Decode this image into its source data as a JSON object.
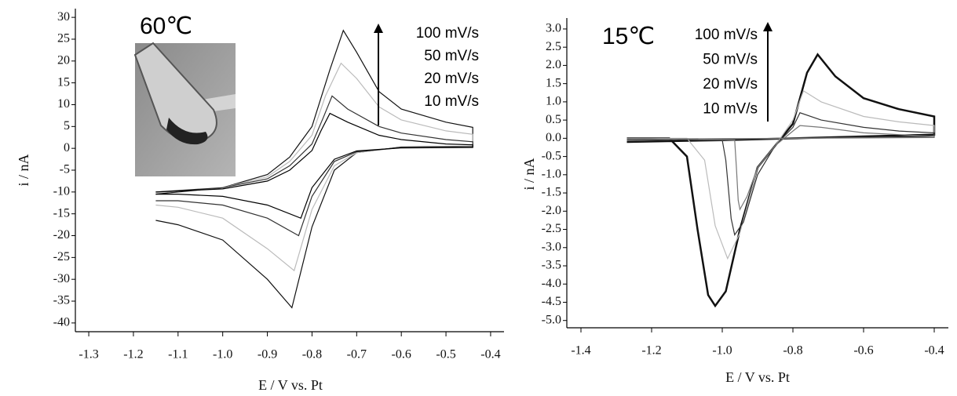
{
  "chart_data": [
    {
      "type": "line",
      "annotation": "60℃",
      "x_label": "E / V vs. Pt",
      "y_label": "i / nA",
      "xlim": [
        -1.33,
        -0.37
      ],
      "ylim": [
        -42,
        32
      ],
      "xticks": [
        -1.3,
        -1.2,
        -1.1,
        {
          "value": -1,
          "label": "-1.0"
        },
        -0.9,
        -0.8,
        -0.7,
        -0.6,
        -0.5,
        -0.4
      ],
      "yticks": [
        30,
        25,
        20,
        15,
        10,
        5,
        0,
        -5,
        -10,
        -15,
        -20,
        -25,
        -30,
        -35,
        -40
      ],
      "legend": "upper right",
      "series": [
        {
          "name": "100 mV/s",
          "color": "#111111",
          "x": [
            -1.15,
            -1.0,
            -0.9,
            -0.85,
            -0.8,
            -0.76,
            -0.73,
            -0.7,
            -0.65,
            -0.6,
            -0.5,
            -0.44,
            -0.44,
            -0.6,
            -0.7,
            -0.75,
            -0.8,
            -0.845,
            -0.9,
            -1.0,
            -1.1,
            -1.15
          ],
          "values": [
            -10.5,
            -9,
            -6,
            -2,
            5,
            18,
            27,
            22,
            13,
            9,
            6,
            4.8,
            0.5,
            0.3,
            -1,
            -5,
            -18,
            -36.5,
            -30,
            -21,
            -17.5,
            -16.5
          ]
        },
        {
          "name": "50 mV/s",
          "color": "#bbbbbb",
          "x": [
            -1.15,
            -1.0,
            -0.9,
            -0.85,
            -0.8,
            -0.77,
            -0.735,
            -0.7,
            -0.65,
            -0.6,
            -0.5,
            -0.44,
            -0.44,
            -0.6,
            -0.7,
            -0.75,
            -0.8,
            -0.84,
            -0.9,
            -1.0,
            -1.1,
            -1.15
          ],
          "values": [
            -10.2,
            -9,
            -6.5,
            -3,
            3,
            12,
            19.5,
            16,
            9.5,
            6.5,
            4,
            3.2,
            0.4,
            0.2,
            -1,
            -4,
            -14,
            -28,
            -23,
            -16,
            -13.5,
            -13
          ]
        },
        {
          "name": "20 mV/s",
          "color": "#333333",
          "x": [
            -1.15,
            -1.0,
            -0.9,
            -0.85,
            -0.8,
            -0.775,
            -0.755,
            -0.72,
            -0.65,
            -0.6,
            -0.5,
            -0.44,
            -0.44,
            -0.6,
            -0.7,
            -0.75,
            -0.8,
            -0.83,
            -0.9,
            -1.0,
            -1.1,
            -1.15
          ],
          "values": [
            -10,
            -9,
            -7,
            -4,
            1,
            7,
            12,
            9,
            5,
            3.5,
            2,
            1.5,
            0.3,
            0.2,
            -0.8,
            -3,
            -11,
            -20,
            -16,
            -13,
            -12,
            -12
          ]
        },
        {
          "name": "10 mV/s",
          "color": "#000000",
          "x": [
            -1.15,
            -1.0,
            -0.9,
            -0.85,
            -0.8,
            -0.78,
            -0.76,
            -0.72,
            -0.65,
            -0.6,
            -0.5,
            -0.44,
            -0.44,
            -0.6,
            -0.7,
            -0.75,
            -0.8,
            -0.825,
            -0.9,
            -1.0,
            -1.1,
            -1.15
          ],
          "values": [
            -10,
            -9.3,
            -7.5,
            -5,
            -0.5,
            4,
            8,
            6,
            3,
            2,
            1,
            0.8,
            0.2,
            0.1,
            -0.6,
            -2.5,
            -9,
            -16,
            -13,
            -11,
            -10.5,
            -10.5
          ]
        }
      ]
    },
    {
      "type": "line",
      "annotation": "15℃",
      "x_label": "E / V vs. Pt",
      "y_label": "i / nA",
      "xlim": [
        -1.44,
        -0.36
      ],
      "ylim": [
        -5.2,
        3.3
      ],
      "xticks": [
        -1.4,
        -1.2,
        {
          "value": -1,
          "label": "-1.0"
        },
        -0.8,
        -0.6,
        -0.4
      ],
      "yticks": [
        {
          "value": 3,
          "label": "3.0"
        },
        2.5,
        {
          "value": 2,
          "label": "2.0"
        },
        1.5,
        {
          "value": 1,
          "label": "1.0"
        },
        0.5,
        {
          "value": 0,
          "label": "0.0"
        },
        -0.5,
        {
          "value": -1,
          "label": "-1.0"
        },
        -1.5,
        {
          "value": -2,
          "label": "-2.0"
        },
        -2.5,
        {
          "value": -3,
          "label": "-3.0"
        },
        -3.5,
        {
          "value": -4,
          "label": "-4.0"
        },
        -4.5,
        {
          "value": -5,
          "label": "-5.0"
        }
      ],
      "legend": "upper center",
      "series": [
        {
          "name": "100 mV/s",
          "color": "#111111",
          "x": [
            -1.27,
            -1.15,
            -1.1,
            -1.07,
            -1.04,
            -1.02,
            -0.99,
            -0.95,
            -0.9,
            -0.85,
            -0.8,
            -0.76,
            -0.73,
            -0.68,
            -0.6,
            -0.5,
            -0.4,
            -0.4,
            -0.6,
            -0.8,
            -1.0,
            -1.27
          ],
          "values": [
            0,
            0,
            -0.5,
            -2.5,
            -4.3,
            -4.6,
            -4.2,
            -2.5,
            -0.8,
            -0.2,
            0.4,
            1.8,
            2.3,
            1.7,
            1.1,
            0.8,
            0.6,
            0.1,
            0.05,
            0,
            -0.05,
            -0.1
          ]
        },
        {
          "name": "50 mV/s",
          "color": "#bbbbbb",
          "x": [
            -1.27,
            -1.1,
            -1.05,
            -1.02,
            -0.985,
            -0.95,
            -0.9,
            -0.85,
            -0.8,
            -0.77,
            -0.72,
            -0.6,
            -0.5,
            -0.4,
            -0.4,
            -0.8,
            -1.27
          ],
          "values": [
            0,
            0,
            -0.6,
            -2.4,
            -3.3,
            -2.6,
            -0.8,
            -0.2,
            0.5,
            1.3,
            1.0,
            0.6,
            0.45,
            0.35,
            0.05,
            0,
            -0.05
          ]
        },
        {
          "name": "20 mV/s",
          "color": "#333333",
          "x": [
            -1.27,
            -1.0,
            -0.99,
            -0.975,
            -0.965,
            -0.94,
            -0.9,
            -0.85,
            -0.8,
            -0.78,
            -0.72,
            -0.6,
            -0.5,
            -0.4,
            -0.4,
            -0.8,
            -1.27
          ],
          "values": [
            0,
            -0.05,
            -0.6,
            -2.2,
            -2.65,
            -2.3,
            -1.0,
            -0.2,
            0.3,
            0.7,
            0.5,
            0.3,
            0.2,
            0.15,
            0.05,
            0,
            -0.05
          ]
        },
        {
          "name": "10 mV/s",
          "color": "#777777",
          "x": [
            -1.27,
            -0.965,
            -0.96,
            -0.955,
            -0.95,
            -0.93,
            -0.9,
            -0.85,
            -0.8,
            -0.78,
            -0.72,
            -0.6,
            -0.5,
            -0.4,
            -0.4,
            -0.8,
            -1.27
          ],
          "values": [
            0,
            -0.05,
            -0.8,
            -1.7,
            -1.95,
            -1.6,
            -0.8,
            -0.2,
            0.2,
            0.35,
            0.3,
            0.15,
            0.1,
            0.05,
            0.02,
            0,
            -0.02
          ]
        }
      ]
    }
  ]
}
